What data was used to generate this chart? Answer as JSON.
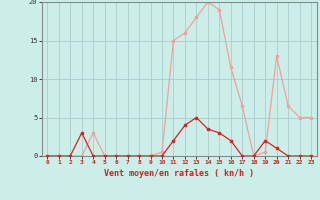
{
  "x": [
    0,
    1,
    2,
    3,
    4,
    5,
    6,
    7,
    8,
    9,
    10,
    11,
    12,
    13,
    14,
    15,
    16,
    17,
    18,
    19,
    20,
    21,
    22,
    23
  ],
  "y_rafales": [
    0,
    0,
    0,
    0,
    3,
    0,
    0,
    0,
    0,
    0,
    0.5,
    15,
    16,
    18,
    20,
    19,
    11.5,
    6.5,
    0,
    0.5,
    13,
    6.5,
    5,
    5
  ],
  "y_vent": [
    0,
    0,
    0,
    3,
    0,
    0,
    0,
    0,
    0,
    0,
    0,
    2,
    4,
    5,
    3.5,
    3,
    2,
    0,
    0,
    2,
    1,
    0,
    0,
    0
  ],
  "xlabel": "Vent moyen/en rafales ( kn/h )",
  "xlim": [
    -0.5,
    23.5
  ],
  "ylim": [
    0,
    20
  ],
  "yticks": [
    0,
    5,
    10,
    15,
    20
  ],
  "xticks": [
    0,
    1,
    2,
    3,
    4,
    5,
    6,
    7,
    8,
    9,
    10,
    11,
    12,
    13,
    14,
    15,
    16,
    17,
    18,
    19,
    20,
    21,
    22,
    23
  ],
  "bg_color": "#cceee8",
  "grid_color": "#aacccc",
  "line_color_rafales": "#f0a0a0",
  "line_color_vent": "#dd2222",
  "marker_color_rafales": "#f0a0a0",
  "marker_color_vent": "#dd2222",
  "spine_color": "#888888"
}
